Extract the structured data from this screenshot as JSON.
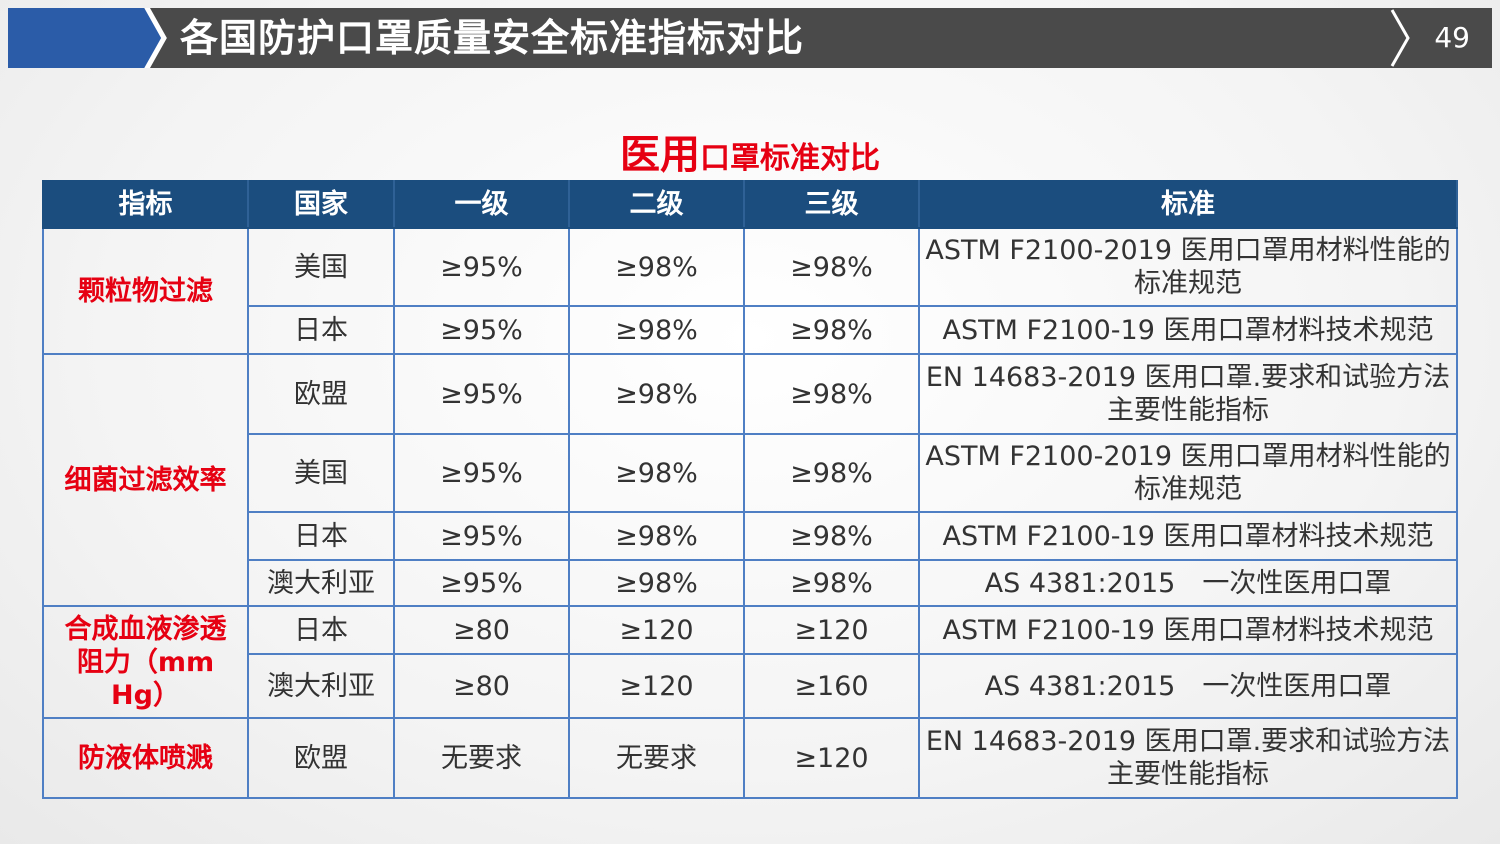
{
  "header": {
    "title": "各国防护口罩质量安全标准指标对比",
    "page_number": "49",
    "colors": {
      "accent": "#2b5ca8",
      "bar": "#4a4a4a"
    }
  },
  "subtitle": {
    "big": "医用",
    "small": "口罩标准对比",
    "color": "#e60012"
  },
  "table": {
    "headers": [
      "指标",
      "国家",
      "一级",
      "二级",
      "三级",
      "标准"
    ],
    "groups": [
      {
        "indicator": "颗粒物过滤",
        "rows": [
          {
            "country": "美国",
            "level1": "≥95%",
            "level2": "≥98%",
            "level3": "≥98%",
            "standard": "ASTM F2100-2019 医用口罩用材料性能的标准规范"
          },
          {
            "country": "日本",
            "level1": "≥95%",
            "level2": "≥98%",
            "level3": "≥98%",
            "standard": "ASTM F2100-19 医用口罩材料技术规范"
          }
        ]
      },
      {
        "indicator": "细菌过滤效率",
        "rows": [
          {
            "country": "欧盟",
            "level1": "≥95%",
            "level2": "≥98%",
            "level3": "≥98%",
            "standard": "EN 14683-2019 医用口罩.要求和试验方法 主要性能指标"
          },
          {
            "country": "美国",
            "level1": "≥95%",
            "level2": "≥98%",
            "level3": "≥98%",
            "standard": "ASTM F2100-2019 医用口罩用材料性能的标准规范"
          },
          {
            "country": "日本",
            "level1": "≥95%",
            "level2": "≥98%",
            "level3": "≥98%",
            "standard": "ASTM F2100-19 医用口罩材料技术规范"
          },
          {
            "country": "澳大利亚",
            "level1": "≥95%",
            "level2": "≥98%",
            "level3": "≥98%",
            "standard": "AS 4381:2015　一次性医用口罩"
          }
        ]
      },
      {
        "indicator": "合成血液渗透阻力（mm Hg）",
        "rows": [
          {
            "country": "日本",
            "level1": "≥80",
            "level2": "≥120",
            "level3": "≥120",
            "standard": "ASTM F2100-19 医用口罩材料技术规范"
          },
          {
            "country": "澳大利亚",
            "level1": "≥80",
            "level2": "≥120",
            "level3": "≥160",
            "standard": "AS 4381:2015　一次性医用口罩"
          }
        ]
      },
      {
        "indicator": "防液体喷溅",
        "rows": [
          {
            "country": "欧盟",
            "level1": "无要求",
            "level2": "无要求",
            "level3": "≥120",
            "standard": "EN 14683-2019 医用口罩.要求和试验方法 主要性能指标"
          }
        ]
      }
    ]
  }
}
